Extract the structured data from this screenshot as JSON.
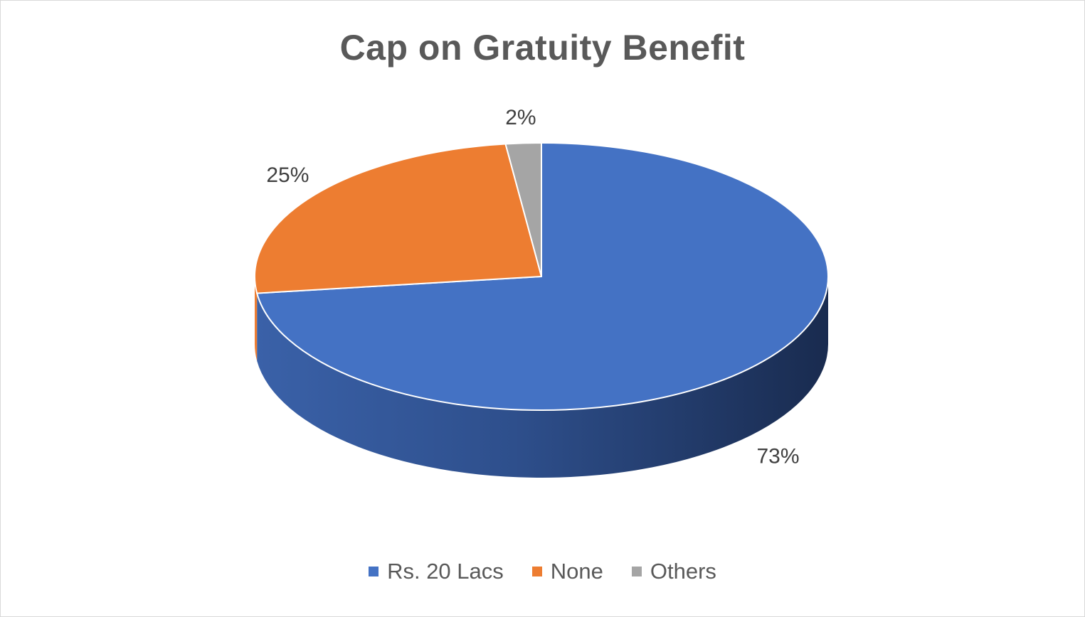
{
  "chart_data": {
    "type": "pie",
    "title": "Cap on Gratuity Benefit",
    "categories": [
      "Rs. 20 Lacs",
      "None",
      "Others"
    ],
    "values": [
      73,
      25,
      2
    ],
    "data_labels": [
      "73%",
      "25%",
      "2%"
    ],
    "colors": [
      "#4472c4",
      "#ed7d31",
      "#a5a5a5"
    ],
    "legend_position": "bottom",
    "style": "3d"
  }
}
